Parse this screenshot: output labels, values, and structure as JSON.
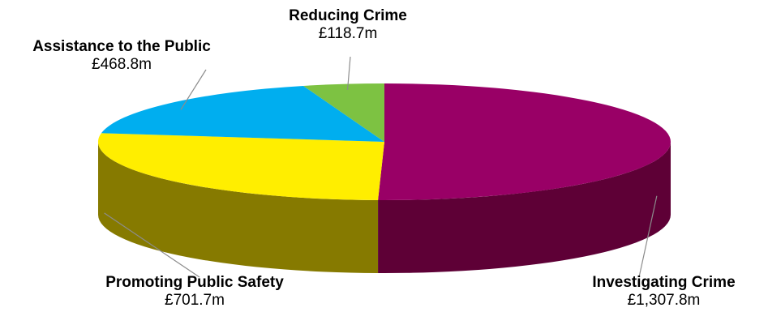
{
  "chart_data": {
    "type": "pie",
    "style": "3d-tilted",
    "title": "",
    "slices": [
      {
        "label": "Investigating Crime",
        "value": 1307.8,
        "display": "£1,307.8m",
        "color": "#990066",
        "side_color": "#5e0036"
      },
      {
        "label": "Promoting Public Safety",
        "value": 701.7,
        "display": "£701.7m",
        "color": "#ffee00",
        "side_color": "#867a00"
      },
      {
        "label": "Assistance to the Public",
        "value": 468.8,
        "display": "£468.8m",
        "color": "#00aeef",
        "side_color": "#006c94"
      },
      {
        "label": "Reducing Crime",
        "value": 118.7,
        "display": "£118.7m",
        "color": "#7dc242",
        "side_color": "#4a7a22"
      }
    ]
  }
}
